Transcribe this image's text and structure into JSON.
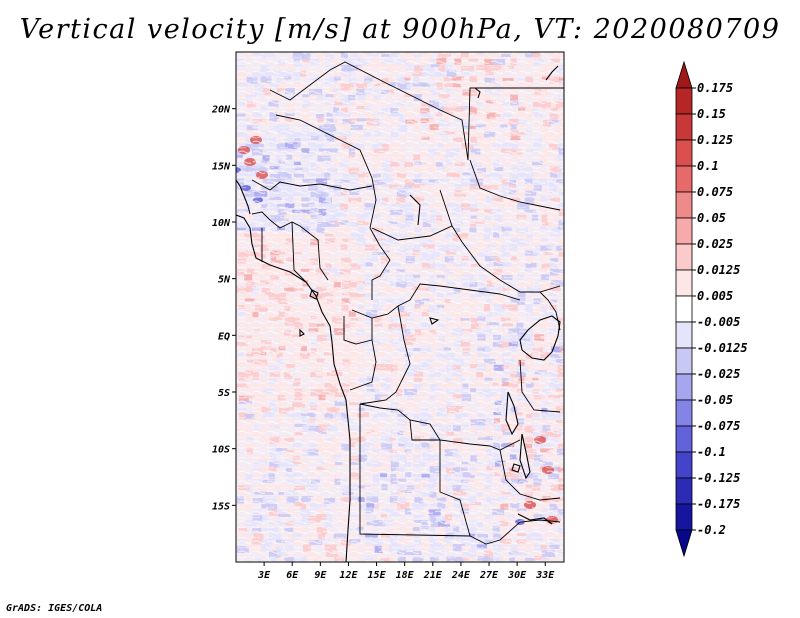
{
  "title": "Vertical velocity [m/s] at 900hPa, VT: 2020080709",
  "footer": "GrADS: IGES/COLA",
  "map": {
    "variable": "Vertical velocity",
    "units": "m/s",
    "level": "900hPa",
    "valid_time": "2020080709",
    "lon_range": [
      0,
      35
    ],
    "lat_range": [
      -20,
      25
    ],
    "lat_labels": [
      "20N",
      "15N",
      "10N",
      "5N",
      "EQ",
      "5S",
      "10S",
      "15S"
    ],
    "lat_values": [
      20,
      15,
      10,
      5,
      0,
      -5,
      -10,
      -15
    ],
    "lon_labels": [
      "3E",
      "6E",
      "9E",
      "12E",
      "15E",
      "18E",
      "21E",
      "24E",
      "27E",
      "30E",
      "33E"
    ],
    "lon_values": [
      3,
      6,
      9,
      12,
      15,
      18,
      21,
      24,
      27,
      30,
      33
    ]
  },
  "colorbar": {
    "labels": [
      "0.175",
      "0.15",
      "0.125",
      "0.1",
      "0.075",
      "0.05",
      "0.025",
      "0.0125",
      "0.005",
      "-0.005",
      "-0.0125",
      "-0.025",
      "-0.05",
      "-0.075",
      "-0.1",
      "-0.125",
      "-0.175",
      "-0.2"
    ],
    "colors": [
      "#a01818",
      "#b52626",
      "#c93838",
      "#db4f4f",
      "#e76a6a",
      "#ef8a8a",
      "#f6aaaa",
      "#fbcaca",
      "#fde6e6",
      "#ffffff",
      "#e4e4fb",
      "#c8c8f5",
      "#a6a6ef",
      "#8484e7",
      "#6262da",
      "#4444cb",
      "#2b2bb6",
      "#1515a0",
      "#08088c"
    ]
  }
}
